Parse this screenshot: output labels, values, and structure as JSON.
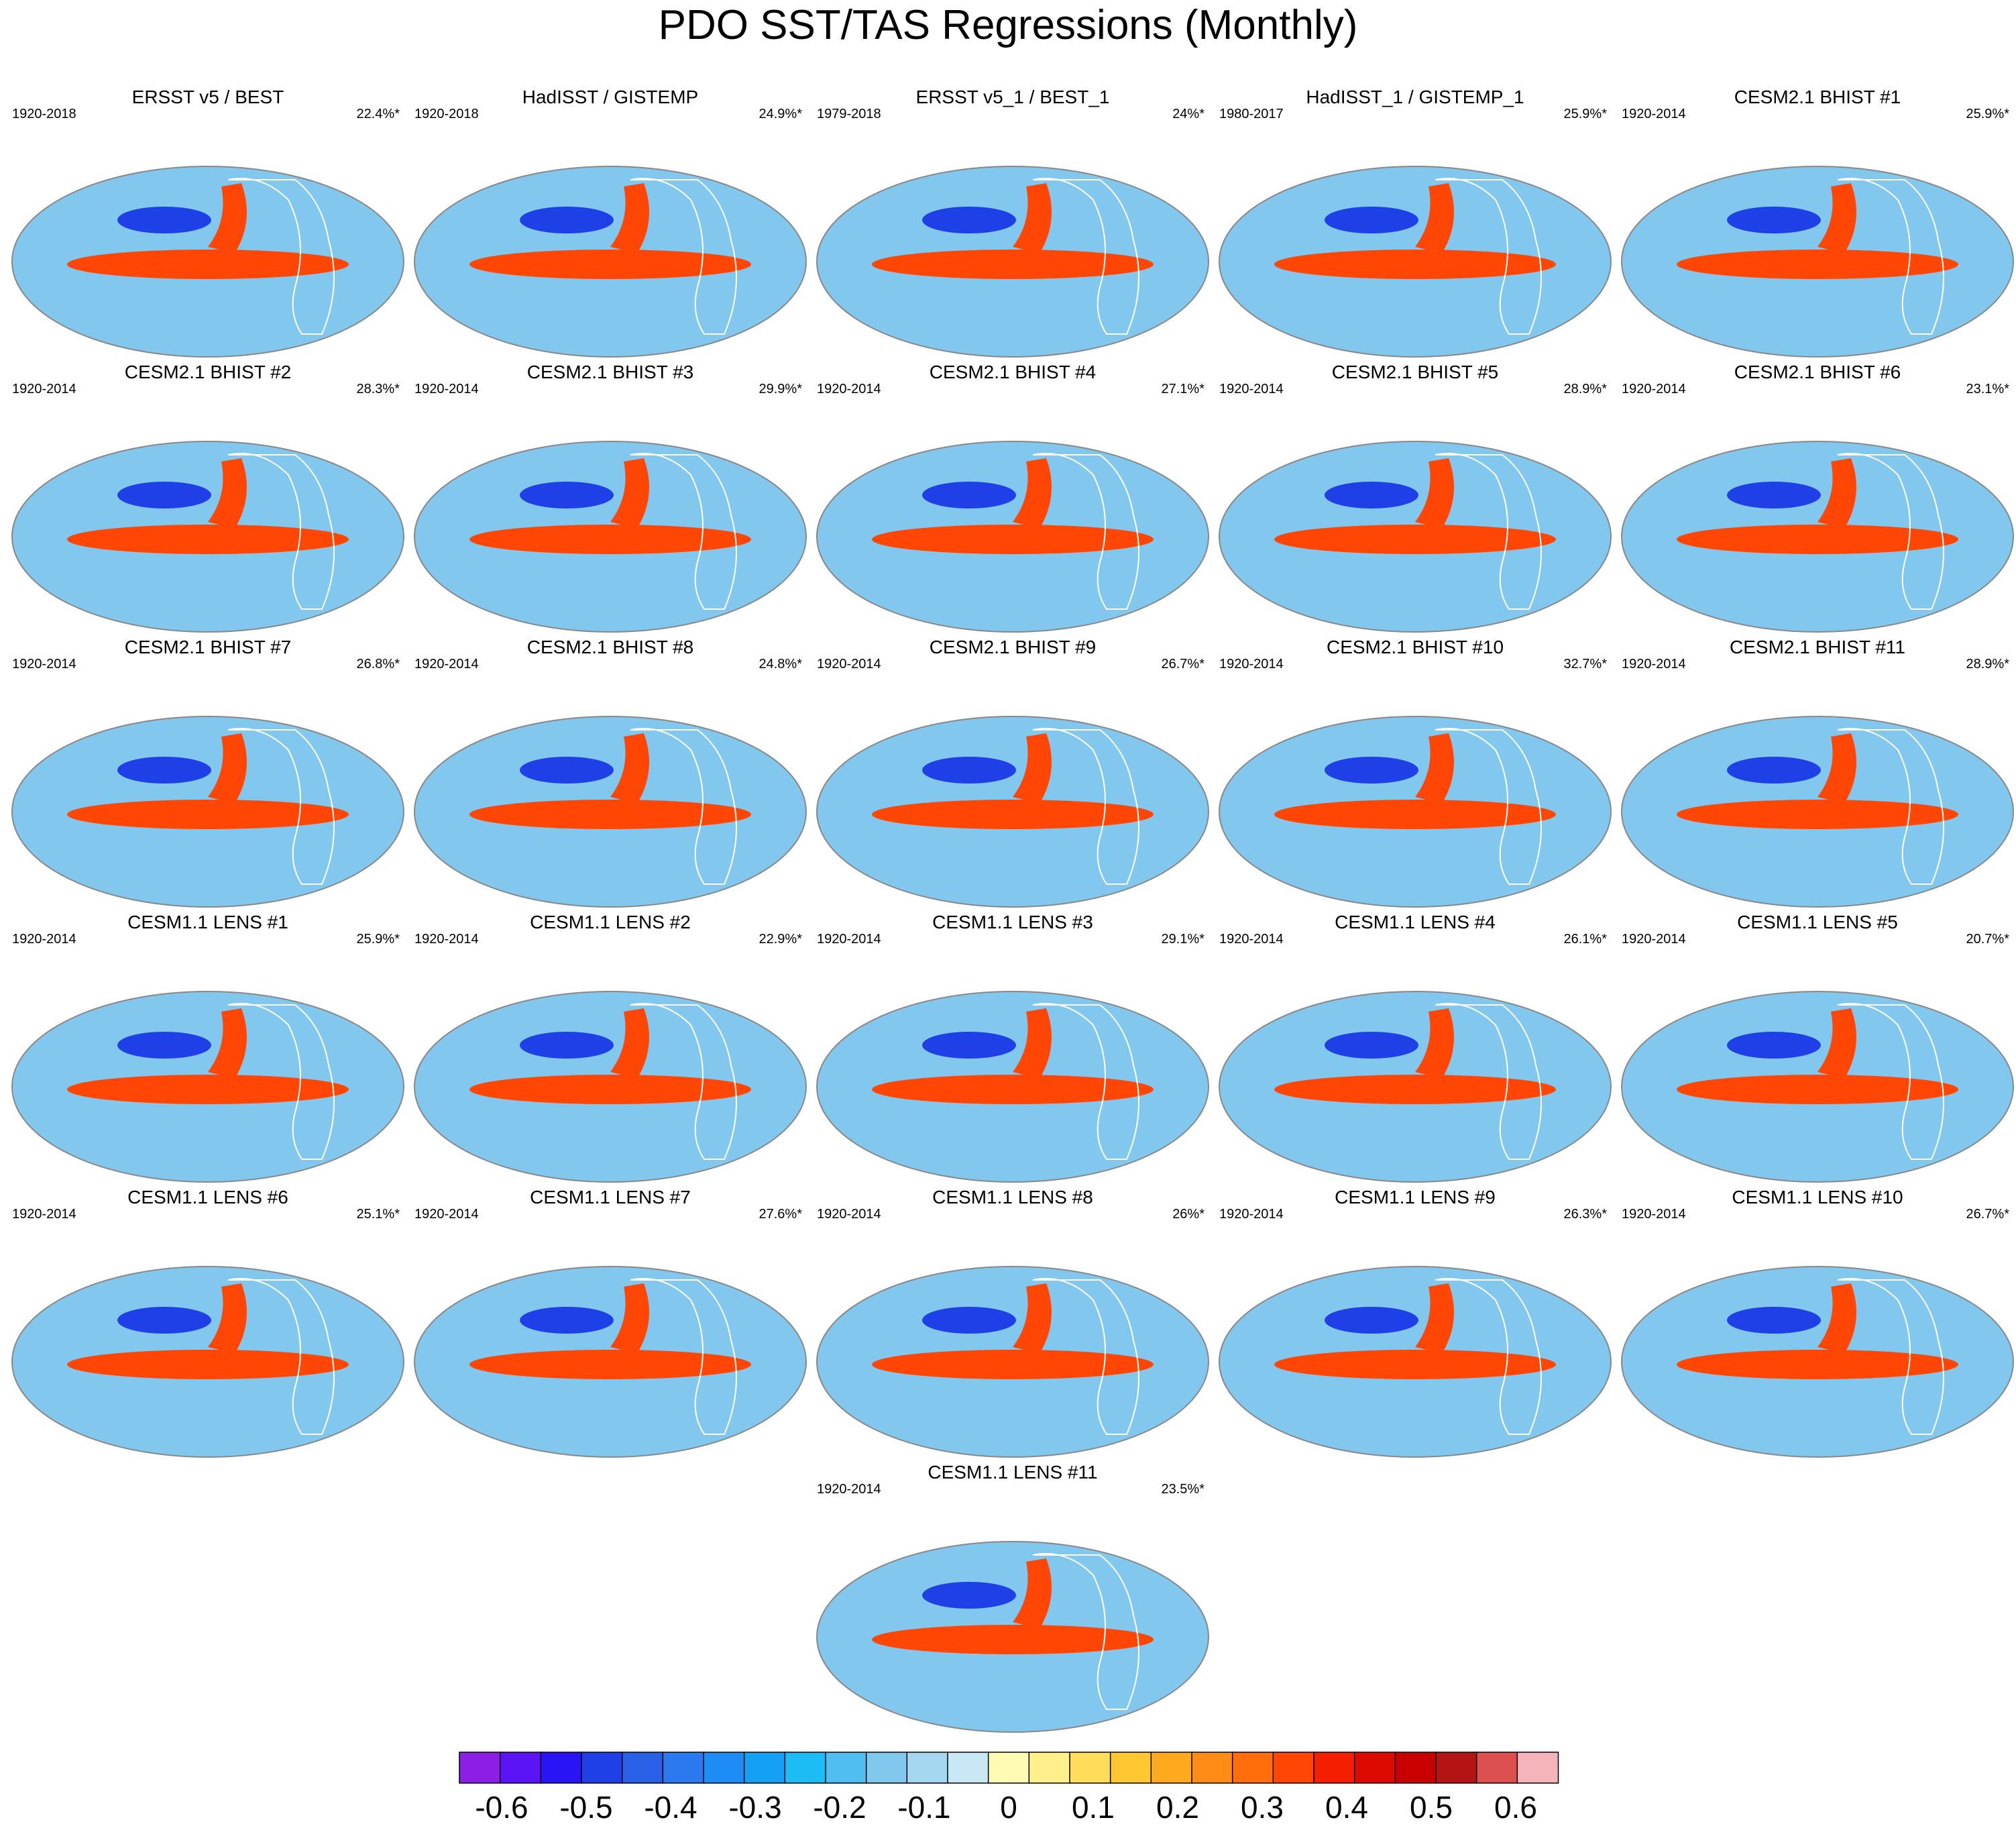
{
  "title": "PDO SST/TAS Regressions (Monthly)",
  "colors": {
    "scale": [
      "#8c1ee6",
      "#5a14f5",
      "#2814f5",
      "#1e40e6",
      "#2860e6",
      "#2c78ee",
      "#1e8cf5",
      "#14a0f5",
      "#1ebcf5",
      "#50bef0",
      "#82c8ee",
      "#a5d7f0",
      "#c8e8f6",
      "#fffab4",
      "#fff08c",
      "#ffdc5a",
      "#ffc832",
      "#ffaa1e",
      "#ff8c14",
      "#ff6e0a",
      "#ff4605",
      "#f51e00",
      "#dc0a00",
      "#c80000",
      "#b41414",
      "#dc5050",
      "#f5b4b9"
    ],
    "map_low": "#82c8ee",
    "map_high": "#ff4605",
    "land": "#ffdc5a",
    "land_line": "#ffffff",
    "border": "#888888"
  },
  "chart_data": {
    "type": "heatmap",
    "colorbar": {
      "min": -0.65,
      "max": 0.65,
      "ticks": [
        "-0.6",
        "-0.5",
        "-0.4",
        "-0.3",
        "-0.2",
        "-0.1",
        "0",
        "0.1",
        "0.2",
        "0.3",
        "0.4",
        "0.5",
        "0.6"
      ]
    },
    "panels": [
      {
        "title": "ERSST v5 / BEST",
        "period": "1920-2018",
        "variance": "22.4%*"
      },
      {
        "title": "HadISST / GISTEMP",
        "period": "1920-2018",
        "variance": "24.9%*"
      },
      {
        "title": "ERSST v5_1 / BEST_1",
        "period": "1979-2018",
        "variance": "24%*"
      },
      {
        "title": "HadISST_1 / GISTEMP_1",
        "period": "1980-2017",
        "variance": "25.9%*"
      },
      {
        "title": "CESM2.1 BHIST #1",
        "period": "1920-2014",
        "variance": "25.9%*"
      },
      {
        "title": "CESM2.1 BHIST #2",
        "period": "1920-2014",
        "variance": "28.3%*"
      },
      {
        "title": "CESM2.1 BHIST #3",
        "period": "1920-2014",
        "variance": "29.9%*"
      },
      {
        "title": "CESM2.1 BHIST #4",
        "period": "1920-2014",
        "variance": "27.1%*"
      },
      {
        "title": "CESM2.1 BHIST #5",
        "period": "1920-2014",
        "variance": "28.9%*"
      },
      {
        "title": "CESM2.1 BHIST #6",
        "period": "1920-2014",
        "variance": "23.1%*"
      },
      {
        "title": "CESM2.1 BHIST #7",
        "period": "1920-2014",
        "variance": "26.8%*"
      },
      {
        "title": "CESM2.1 BHIST #8",
        "period": "1920-2014",
        "variance": "24.8%*"
      },
      {
        "title": "CESM2.1 BHIST #9",
        "period": "1920-2014",
        "variance": "26.7%*"
      },
      {
        "title": "CESM2.1 BHIST #10",
        "period": "1920-2014",
        "variance": "32.7%*"
      },
      {
        "title": "CESM2.1 BHIST #11",
        "period": "1920-2014",
        "variance": "28.9%*"
      },
      {
        "title": "CESM1.1 LENS #1",
        "period": "1920-2014",
        "variance": "25.9%*"
      },
      {
        "title": "CESM1.1 LENS #2",
        "period": "1920-2014",
        "variance": "22.9%*"
      },
      {
        "title": "CESM1.1 LENS #3",
        "period": "1920-2014",
        "variance": "29.1%*"
      },
      {
        "title": "CESM1.1 LENS #4",
        "period": "1920-2014",
        "variance": "26.1%*"
      },
      {
        "title": "CESM1.1 LENS #5",
        "period": "1920-2014",
        "variance": "20.7%*"
      },
      {
        "title": "CESM1.1 LENS #6",
        "period": "1920-2014",
        "variance": "25.1%*"
      },
      {
        "title": "CESM1.1 LENS #7",
        "period": "1920-2014",
        "variance": "27.6%*"
      },
      {
        "title": "CESM1.1 LENS #8",
        "period": "1920-2014",
        "variance": "26%*"
      },
      {
        "title": "CESM1.1 LENS #9",
        "period": "1920-2014",
        "variance": "26.3%*"
      },
      {
        "title": "CESM1.1 LENS #10",
        "period": "1920-2014",
        "variance": "26.7%*"
      },
      {
        "title": "CESM1.1 LENS #11",
        "period": "1920-2014",
        "variance": "23.5%*"
      }
    ]
  }
}
